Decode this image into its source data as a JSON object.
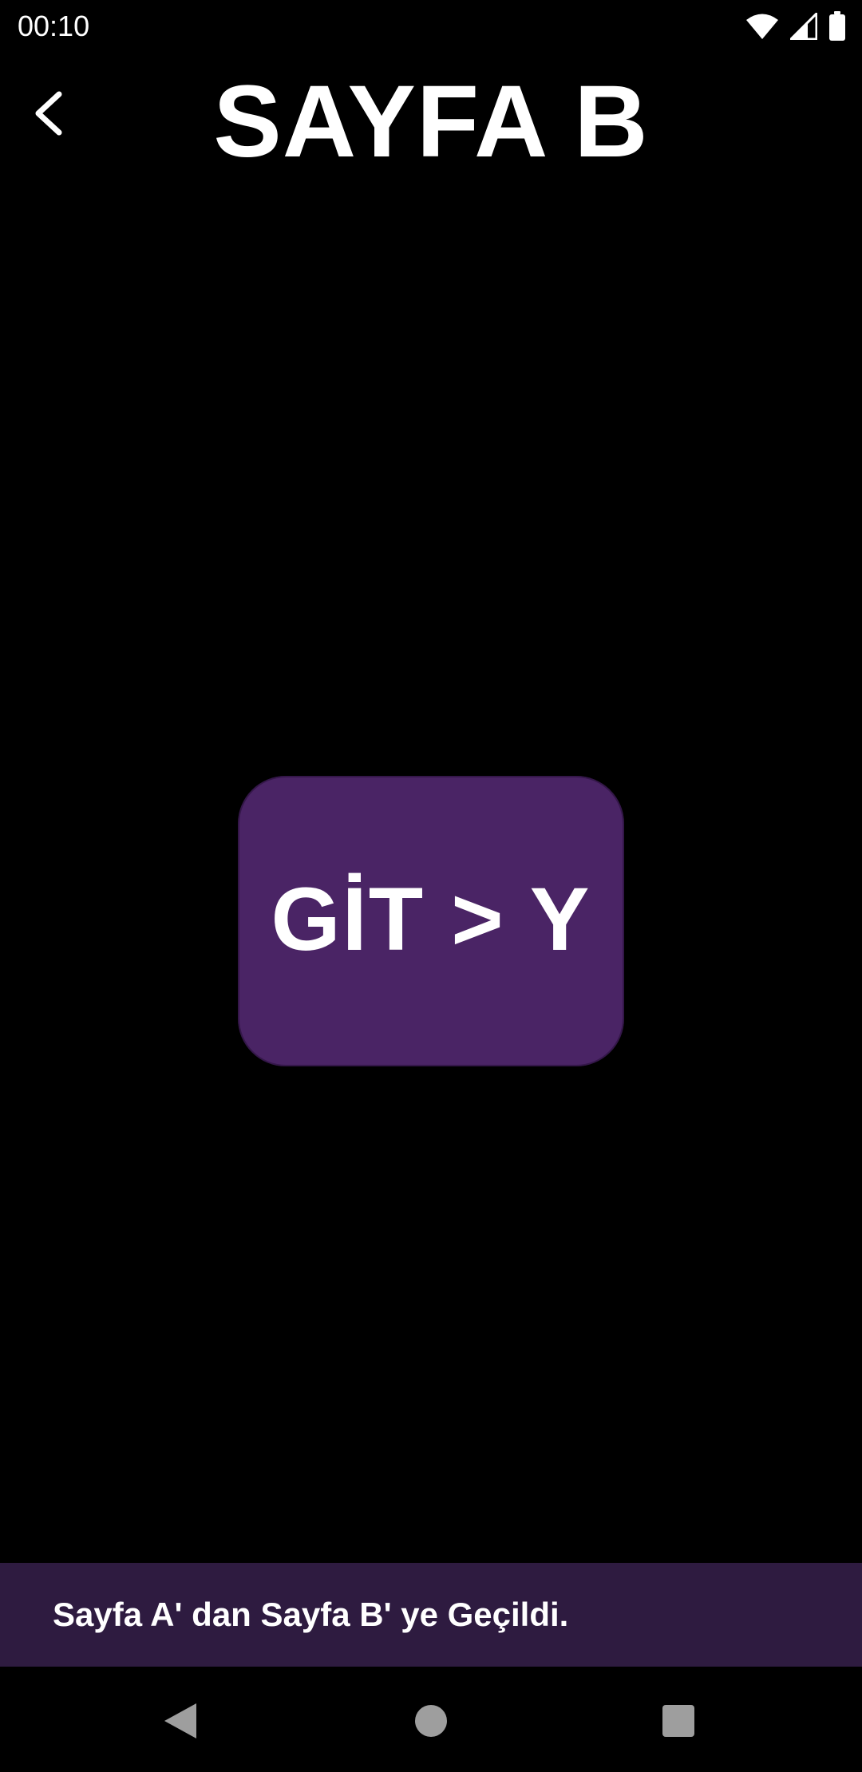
{
  "status_bar": {
    "time": "00:10",
    "icons": [
      "wifi-icon",
      "cellular-signal-icon",
      "battery-icon"
    ]
  },
  "top_bar": {
    "title": "SAYFA B",
    "back_icon": "arrow-back-icon"
  },
  "main": {
    "button_label": "GİT > Y",
    "button_color": "#4a2465"
  },
  "snackbar": {
    "message": "Sayfa A' dan Sayfa B' ye Geçildi.",
    "background": "#2e1b40"
  },
  "nav_bar": {
    "buttons": [
      "nav-back-icon",
      "nav-home-icon",
      "nav-recents-icon"
    ]
  }
}
